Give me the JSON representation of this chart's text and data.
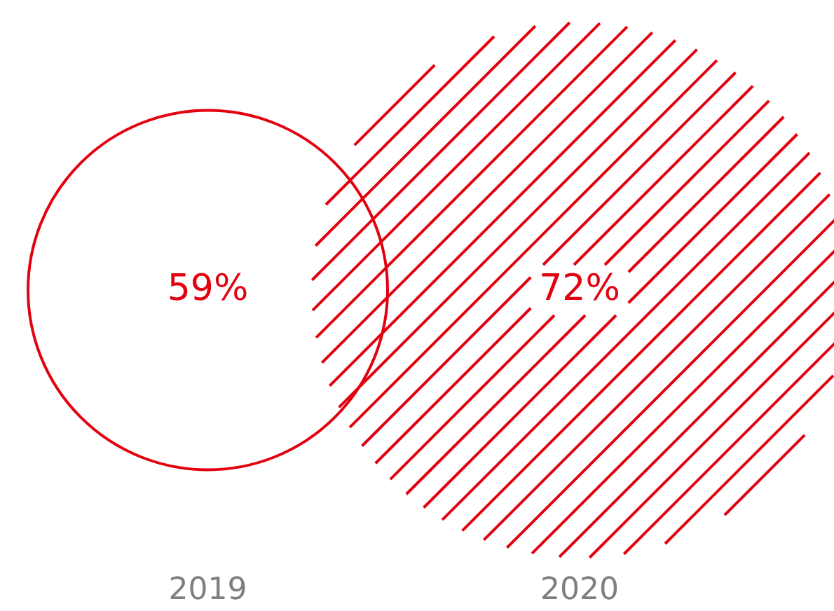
{
  "chart_data": {
    "type": "other",
    "categories": [
      "2019",
      "2020"
    ],
    "values": [
      59,
      72
    ],
    "value_labels": [
      "59%",
      "72%"
    ],
    "colors": [
      "#e3000f",
      "#e3000f"
    ]
  }
}
